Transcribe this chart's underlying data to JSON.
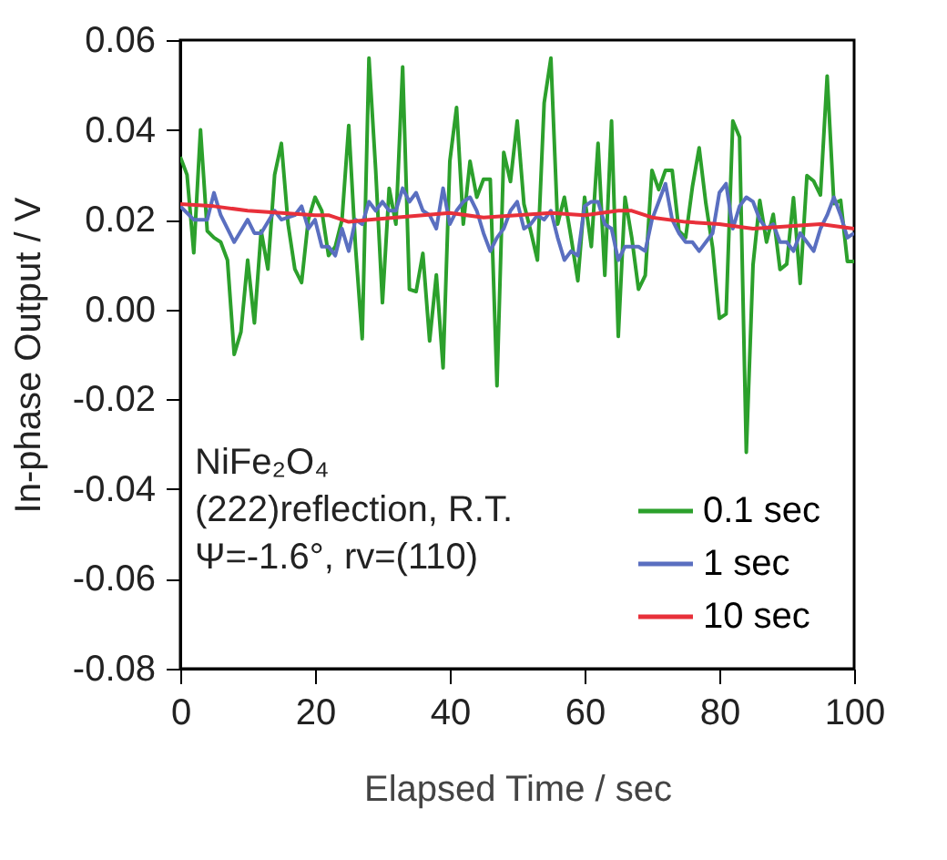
{
  "chart_data": {
    "type": "line",
    "xlabel": "Elapsed Time / sec",
    "ylabel": "In-phase Output / V",
    "xlim": [
      0,
      100
    ],
    "xticks": [
      0,
      20,
      40,
      60,
      80,
      100
    ],
    "ylim": [
      -0.08,
      0.06
    ],
    "yticks": [
      {
        "value": -0.08,
        "label": "-0.08"
      },
      {
        "value": -0.06,
        "label": "-0.06"
      },
      {
        "value": -0.04,
        "label": "-0.04"
      },
      {
        "value": -0.02,
        "label": "-0.02"
      },
      {
        "value": 0,
        "label": "0.00"
      },
      {
        "value": 0.02,
        "label": "0.02"
      },
      {
        "value": 0.04,
        "label": "0.04"
      },
      {
        "value": 0.06,
        "label": "0.06"
      }
    ],
    "grid": false,
    "legend": "bottom right",
    "marker": "none",
    "line_style": "solid",
    "annotations": [
      "NiFe₂O₄",
      "(222)reflection, R.T.",
      "Ψ=-1.6°, rv=(110)"
    ],
    "series": [
      {
        "name": "0.1 sec",
        "color": "#2ca02c",
        "x": [
          0,
          1,
          2,
          3,
          4,
          5,
          6,
          7,
          8,
          9,
          10,
          11,
          12,
          13,
          14,
          15,
          16,
          17,
          18,
          19,
          20,
          21,
          22,
          23,
          24,
          25,
          26,
          27,
          28,
          29,
          30,
          31,
          32,
          33,
          34,
          35,
          36,
          37,
          38,
          39,
          40,
          41,
          42,
          43,
          44,
          45,
          46,
          47,
          48,
          49,
          50,
          51,
          52,
          53,
          54,
          55,
          56,
          57,
          58,
          59,
          60,
          61,
          62,
          63,
          64,
          65,
          66,
          67,
          68,
          69,
          70,
          71,
          72,
          73,
          74,
          75,
          76,
          77,
          78,
          79,
          80,
          81,
          82,
          83,
          84,
          85,
          86,
          87,
          88,
          89,
          90,
          91,
          92,
          93,
          94,
          95,
          96,
          97,
          98,
          99,
          100
        ],
        "values": [
          0.034,
          0.03,
          0.0126,
          0.04,
          0.0175,
          0.016,
          0.015,
          0.011,
          -0.01,
          -0.005,
          0.011,
          -0.003,
          0.0175,
          0.009,
          0.03,
          0.037,
          0.019,
          0.009,
          0.006,
          0.02,
          0.025,
          0.022,
          0.012,
          0.014,
          0.02,
          0.041,
          0.014,
          -0.0065,
          0.056,
          0.031,
          0.0015,
          0.027,
          0.019,
          0.054,
          0.0045,
          0.004,
          0.0125,
          -0.007,
          0.0077,
          -0.013,
          0.033,
          0.045,
          0.019,
          0.033,
          0.025,
          0.029,
          0.029,
          -0.017,
          0.035,
          0.0285,
          0.042,
          0.0235,
          0.0175,
          0.011,
          0.046,
          0.056,
          0.019,
          0.025,
          0.016,
          0.0064,
          0.025,
          0.014,
          0.037,
          0.0076,
          0.042,
          -0.006,
          0.025,
          0.016,
          0.0045,
          0.0076,
          0.031,
          0.0267,
          0.031,
          0.031,
          0.0175,
          0.016,
          0.0273,
          0.036,
          0.0236,
          0.0138,
          -0.002,
          -0.001,
          0.042,
          0.0384,
          -0.0318,
          0.01,
          0.0243,
          0.015,
          0.0212,
          0.0089,
          0.0101,
          0.0249,
          0.0058,
          0.0298,
          0.0286,
          0.0255,
          0.052,
          0.0236,
          0.0243,
          0.0107,
          0.0107
        ]
      },
      {
        "name": "1 sec",
        "color": "#5a6fc0",
        "x": [
          0,
          2,
          4,
          5,
          6,
          8,
          10,
          11,
          12,
          14,
          15,
          17,
          18,
          19,
          20,
          21,
          22,
          23,
          24,
          25,
          26,
          27,
          28,
          29,
          30,
          31,
          32,
          33,
          34,
          35,
          36,
          37,
          38,
          39,
          40,
          41,
          42,
          43,
          44,
          45,
          46,
          47,
          48,
          49,
          50,
          51,
          52,
          53,
          54,
          55,
          56,
          57,
          58,
          59,
          60,
          61,
          62,
          63,
          64,
          65,
          66,
          67,
          68,
          69,
          70,
          71,
          72,
          73,
          74,
          75,
          76,
          77,
          78,
          79,
          80,
          81,
          82,
          83,
          84,
          85,
          86,
          87,
          88,
          89,
          90,
          91,
          92,
          93,
          94,
          95,
          96,
          97,
          98,
          99,
          100
        ],
        "values": [
          0.023,
          0.02,
          0.02,
          0.026,
          0.021,
          0.015,
          0.02,
          0.017,
          0.017,
          0.022,
          0.02,
          0.021,
          0.023,
          0.018,
          0.02,
          0.014,
          0.014,
          0.012,
          0.018,
          0.013,
          0.02,
          0.019,
          0.024,
          0.022,
          0.024,
          0.022,
          0.022,
          0.027,
          0.024,
          0.026,
          0.022,
          0.021,
          0.018,
          0.027,
          0.019,
          0.022,
          0.024,
          0.025,
          0.022,
          0.017,
          0.013,
          0.016,
          0.018,
          0.022,
          0.024,
          0.018,
          0.019,
          0.021,
          0.02,
          0.022,
          0.016,
          0.011,
          0.013,
          0.012,
          0.023,
          0.024,
          0.024,
          0.019,
          0.018,
          0.011,
          0.014,
          0.014,
          0.014,
          0.013,
          0.02,
          0.024,
          0.028,
          0.02,
          0.017,
          0.015,
          0.015,
          0.013,
          0.015,
          0.017,
          0.026,
          0.028,
          0.018,
          0.023,
          0.025,
          0.024,
          0.02,
          0.018,
          0.019,
          0.015,
          0.015,
          0.013,
          0.017,
          0.015,
          0.013,
          0.018,
          0.021,
          0.025,
          0.021,
          0.016,
          0.017
        ]
      },
      {
        "name": "10 sec",
        "color": "#e8303a",
        "x": [
          0,
          5,
          10,
          15,
          20,
          22,
          25,
          28,
          32,
          40,
          45,
          50,
          55,
          60,
          65,
          67,
          70,
          75,
          80,
          85,
          90,
          95,
          100
        ],
        "values": [
          0.0235,
          0.023,
          0.022,
          0.0215,
          0.021,
          0.021,
          0.0195,
          0.02,
          0.0205,
          0.0215,
          0.0205,
          0.021,
          0.0215,
          0.021,
          0.022,
          0.022,
          0.0205,
          0.0195,
          0.019,
          0.018,
          0.0185,
          0.019,
          0.018
        ]
      }
    ]
  }
}
